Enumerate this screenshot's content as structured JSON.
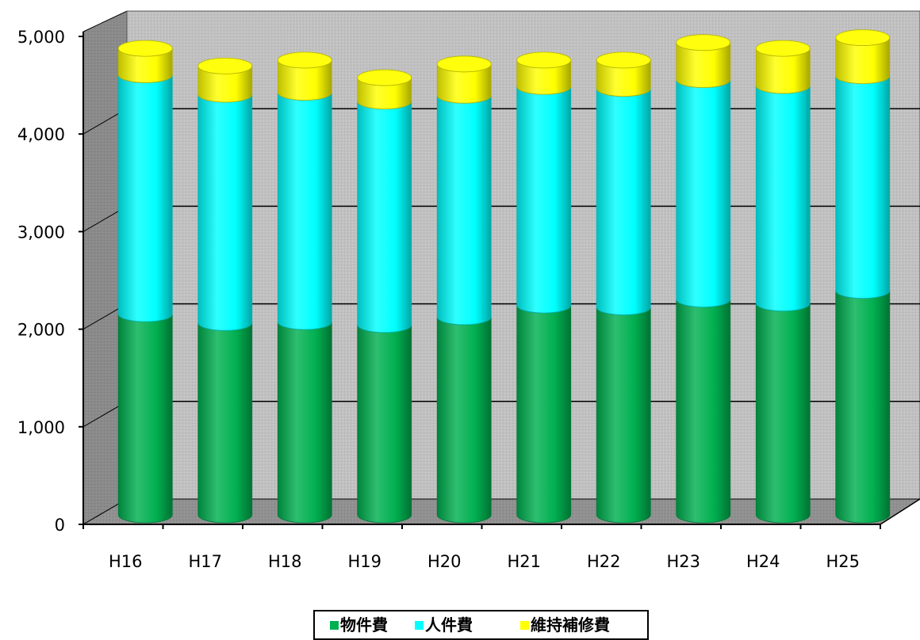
{
  "chart_data": {
    "type": "bar",
    "style": "stacked-3d-cylinder",
    "categories": [
      "H16",
      "H17",
      "H18",
      "H19",
      "H20",
      "H21",
      "H22",
      "H23",
      "H24",
      "H25"
    ],
    "series": [
      {
        "name": "物件費",
        "color": "#00b050",
        "values": [
          2060,
          1970,
          1980,
          1950,
          2030,
          2150,
          2130,
          2210,
          2170,
          2300
        ]
      },
      {
        "name": "人件費",
        "color": "#00ffff",
        "values": [
          2450,
          2340,
          2350,
          2290,
          2270,
          2240,
          2240,
          2250,
          2230,
          2200
        ]
      },
      {
        "name": "維持補修費",
        "color": "#ffff00",
        "values": [
          270,
          290,
          330,
          240,
          320,
          270,
          290,
          380,
          380,
          390
        ]
      }
    ],
    "y_ticks": [
      "0",
      "1,000",
      "2,000",
      "3,000",
      "4,000",
      "5,000"
    ],
    "ylim": [
      0,
      5000
    ],
    "grid": true,
    "legend_position": "bottom-center"
  }
}
